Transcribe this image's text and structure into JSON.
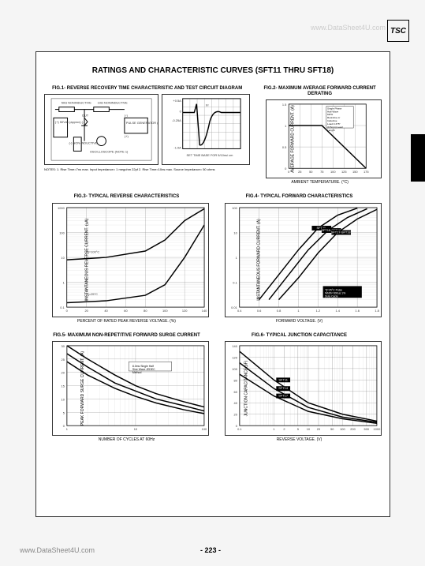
{
  "watermark_top": "www.DataSheet4U.com",
  "logo": "TSC",
  "main_title": "RATINGS AND CHARACTERISTIC CURVES (SFT11 THRU SFT18)",
  "fig1": {
    "title": "FIG.1- REVERSE RECOVERY TIME CHARACTERISTIC AND TEST CIRCUIT DIAGRAM",
    "labels": {
      "r1": "50Ω NONINDUCTIVE",
      "r2": "10Ω NONINDUCTIVE",
      "dut": "DUT",
      "src": "(+) 50Vdc (approx) (-)",
      "h": "(-) NON-INDUCTIVE",
      "scope": "OSCILLOSCOPE (NOTE 1)",
      "pulse": "PULSE GENERATOR (NOTE 2)",
      "plus": "(+)",
      "minus": "(-)"
    },
    "notes": "NOTES: 1. Rise Time=7ns max. Input Impedance= 1 megohm 22pf\n2. Rise Time=10ns max. Source Impedance= 50 ohms",
    "scope_chart": {
      "ylabels": [
        "+0.5A",
        "0",
        "-0.25A",
        "-1.0A"
      ],
      "note_inside": "SET TIME BASE FOR 5/10ns/ cm",
      "line": "trr"
    }
  },
  "fig2": {
    "title": "FIG.2- MAXIMUM AVERAGE FORWARD CURRENT DERATING",
    "ylabel": "AVERAGE FORWARD CURRENT. (A)",
    "xlabel": "AMBIENT TEMPERATURE. (°C)",
    "ylim": [
      0,
      1.5
    ],
    "yticks": [
      0,
      0.5,
      1.0,
      1.5
    ],
    "xlim": [
      0,
      175
    ],
    "xticks": [
      0,
      25,
      50,
      75,
      100,
      125,
      150,
      175
    ],
    "note": "Single Phase Half Wave 60Hz Resistive or Inductive Load 0.375\" (9.5mm) Lead Length",
    "series": [
      {
        "x": [
          0,
          75,
          175
        ],
        "y": [
          1.0,
          1.0,
          0
        ]
      }
    ],
    "color": "#000",
    "lw": 1.5
  },
  "fig3": {
    "title": "FIG.3- TYPICAL REVERSE CHARACTERISTICS",
    "ylabel": "INSTANTANEOUS REVERSE CURRENT. (uA)",
    "xlabel": "PERCENT OF RATED PEAK REVERSE VOLTAGE. (%)",
    "ylim_log": [
      0.1,
      1000
    ],
    "yticks": [
      0.1,
      1,
      10,
      100,
      1000
    ],
    "xlim": [
      0,
      140
    ],
    "xticks": [
      0,
      20,
      40,
      60,
      80,
      100,
      120,
      140
    ],
    "series": [
      {
        "label": "Tj=100°C",
        "x": [
          0,
          40,
          80,
          100,
          120,
          140
        ],
        "y": [
          8,
          10,
          18,
          50,
          300,
          900
        ]
      },
      {
        "label": "Tj=25°C",
        "x": [
          0,
          40,
          80,
          100,
          120,
          140
        ],
        "y": [
          0.15,
          0.18,
          0.3,
          0.8,
          10,
          200
        ]
      }
    ],
    "color": "#000",
    "lw": 1.5
  },
  "fig4": {
    "title": "FIG.4- TYPICAL FORWARD CHARACTERISTICS",
    "ylabel": "INSTANTANEOUS FORWARD CURRENT. (A)",
    "xlabel": "FORWARD VOLTAGE. (V)",
    "ylim_log": [
      0.01,
      100
    ],
    "yticks": [
      0.01,
      0.1,
      1,
      10,
      100
    ],
    "xlim": [
      0.4,
      1.8
    ],
    "xticks": [
      0.4,
      0.6,
      0.8,
      1.0,
      1.2,
      1.4,
      1.6,
      1.8
    ],
    "note": "Tj=25°C Pulse Width=300us 1% Duty Cycle",
    "series": [
      {
        "label": "SFT11",
        "x": [
          0.6,
          0.8,
          1.0,
          1.2,
          1.4,
          1.6
        ],
        "y": [
          0.02,
          0.2,
          2,
          15,
          50,
          95
        ]
      },
      {
        "label": "SFT15-SFT16",
        "x": [
          0.7,
          0.9,
          1.1,
          1.3,
          1.5,
          1.7
        ],
        "y": [
          0.02,
          0.2,
          2,
          12,
          40,
          90
        ]
      },
      {
        "label": "SFT17-SFT18",
        "x": [
          0.8,
          1.0,
          1.2,
          1.4,
          1.6,
          1.8
        ],
        "y": [
          0.02,
          0.15,
          1.5,
          10,
          35,
          85
        ]
      }
    ],
    "color": "#000",
    "lw": 1.5
  },
  "fig5": {
    "title": "FIG.5- MAXIMUM NON-REPETITIVE FORWARD SURGE CURRENT",
    "ylabel": "PEAK FORWARD SURGE CURRENT. (A)",
    "xlabel": "NUMBER OF CYCLES AT 60Hz",
    "ylim": [
      0,
      30
    ],
    "yticks": [
      0,
      5,
      10,
      15,
      20,
      25,
      30
    ],
    "xlim_log": [
      1,
      100
    ],
    "xticks": [
      1,
      10,
      100
    ],
    "note": "8.3ms Single Half Sine Wave JEDEC Method",
    "series": [
      {
        "x": [
          1,
          2,
          5,
          10,
          20,
          50,
          100
        ],
        "y": [
          30,
          25,
          19,
          15,
          12,
          9,
          7
        ]
      },
      {
        "x": [
          1,
          2,
          5,
          10,
          20,
          50,
          100
        ],
        "y": [
          27,
          22,
          16,
          13,
          10,
          7.5,
          5.5
        ]
      },
      {
        "x": [
          1,
          2,
          5,
          10,
          20,
          50,
          100
        ],
        "y": [
          24,
          19,
          14,
          11,
          8.5,
          6,
          4.5
        ]
      }
    ],
    "color": "#000",
    "lw": 1.5
  },
  "fig6": {
    "title": "FIG.6- TYPICAL JUNCTION CAPACITANCE",
    "ylabel": "JUNCTION CAPACITANCE(pF)",
    "xlabel": "REVERSE VOLTAGE. (V)",
    "ylim": [
      0,
      140
    ],
    "yticks": [
      0,
      20,
      40,
      60,
      80,
      100,
      120,
      140
    ],
    "xlim_log": [
      0.1,
      1000
    ],
    "xticks": [
      0.1,
      1,
      2,
      5,
      10,
      20,
      50,
      100,
      200,
      500,
      1000
    ],
    "series": [
      {
        "label": "SFT11",
        "x": [
          0.1,
          1,
          10,
          100,
          1000
        ],
        "y": [
          130,
          80,
          40,
          20,
          8
        ]
      },
      {
        "label": "SFT14",
        "x": [
          0.1,
          1,
          10,
          100,
          1000
        ],
        "y": [
          110,
          65,
          32,
          15,
          6
        ]
      },
      {
        "label": "SFT17",
        "x": [
          0.1,
          1,
          10,
          100,
          1000
        ],
        "y": [
          90,
          52,
          25,
          12,
          4
        ]
      }
    ],
    "color": "#000",
    "lw": 1.5
  },
  "footer": {
    "left": "www.DataSheet4U.com",
    "center": "- 223 -"
  }
}
